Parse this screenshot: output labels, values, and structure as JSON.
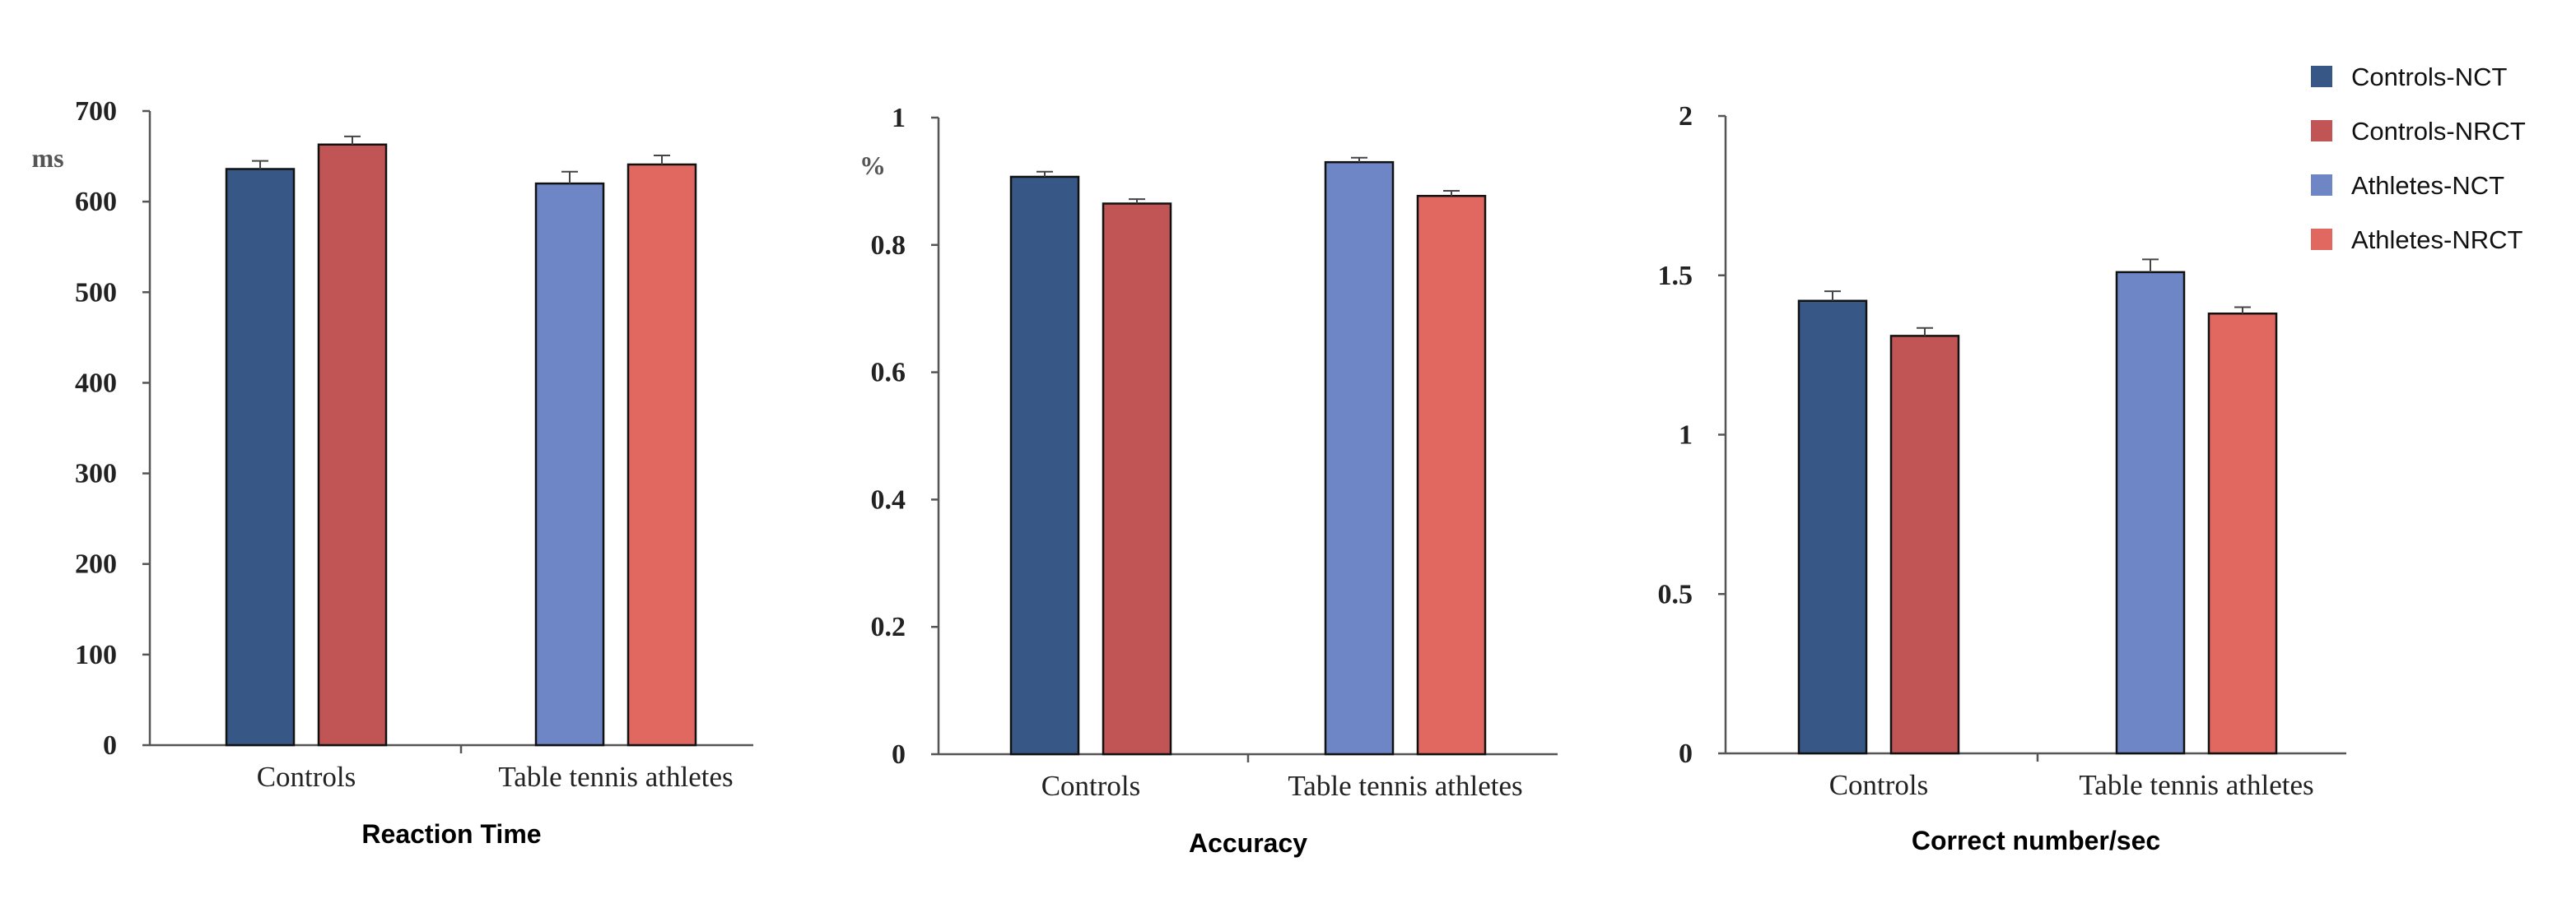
{
  "chart_data": [
    {
      "type": "bar",
      "categories": [
        "Controls",
        "Table tennis athletes"
      ],
      "series": [
        {
          "name": "Controls-NCT",
          "values": [
            636,
            null
          ],
          "error": [
            9,
            null
          ]
        },
        {
          "name": "Controls-NRCT",
          "values": [
            663,
            null
          ],
          "error": [
            9,
            null
          ]
        },
        {
          "name": "Athletes-NCT",
          "values": [
            null,
            620
          ],
          "error": [
            null,
            13
          ]
        },
        {
          "name": "Athletes-NRCT",
          "values": [
            null,
            641
          ],
          "error": [
            null,
            10
          ]
        }
      ],
      "title": "",
      "xlabel": "Reaction Time",
      "ylabel": "ms",
      "ylim": [
        0,
        700
      ],
      "yticks": [
        "0",
        "100",
        "200",
        "300",
        "400",
        "500",
        "600",
        "700"
      ],
      "grid": false
    },
    {
      "type": "bar",
      "categories": [
        "Controls",
        "Table tennis athletes"
      ],
      "series": [
        {
          "name": "Controls-NCT",
          "values": [
            0.907,
            null
          ],
          "error": [
            0.008,
            null
          ]
        },
        {
          "name": "Controls-NRCT",
          "values": [
            0.865,
            null
          ],
          "error": [
            0.007,
            null
          ]
        },
        {
          "name": "Athletes-NCT",
          "values": [
            null,
            0.93
          ],
          "error": [
            null,
            0.007
          ]
        },
        {
          "name": "Athletes-NRCT",
          "values": [
            null,
            0.877
          ],
          "error": [
            null,
            0.008
          ]
        }
      ],
      "title": "",
      "xlabel": "Accuracy",
      "ylabel": "%",
      "ylim": [
        0,
        1
      ],
      "yticks": [
        "0",
        "0.2",
        "0.4",
        "0.6",
        "0.8",
        "1"
      ],
      "grid": false
    },
    {
      "type": "bar",
      "categories": [
        "Controls",
        "Table tennis athletes"
      ],
      "series": [
        {
          "name": "Controls-NCT",
          "values": [
            1.42,
            null
          ],
          "error": [
            0.03,
            null
          ]
        },
        {
          "name": "Controls-NRCT",
          "values": [
            1.31,
            null
          ],
          "error": [
            0.025,
            null
          ]
        },
        {
          "name": "Athletes-NCT",
          "values": [
            null,
            1.51
          ],
          "error": [
            null,
            0.04
          ]
        },
        {
          "name": "Athletes-NRCT",
          "values": [
            null,
            1.38
          ],
          "error": [
            null,
            0.02
          ]
        }
      ],
      "title": "",
      "xlabel": "Correct number/sec",
      "ylabel": "",
      "ylim": [
        0,
        2
      ],
      "yticks": [
        "0",
        "0.5",
        "1",
        "1.5",
        "2"
      ],
      "grid": false
    }
  ],
  "legend": {
    "placement": "top-right",
    "items": [
      {
        "label": "Controls-NCT",
        "color": "#375887"
      },
      {
        "label": "Controls-NRCT",
        "color": "#c15455"
      },
      {
        "label": "Athletes-NCT",
        "color": "#6f86c6"
      },
      {
        "label": "Athletes-NRCT",
        "color": "#e06860"
      }
    ]
  },
  "colors": [
    "#375887",
    "#c15455",
    "#6f86c6",
    "#e06860"
  ]
}
